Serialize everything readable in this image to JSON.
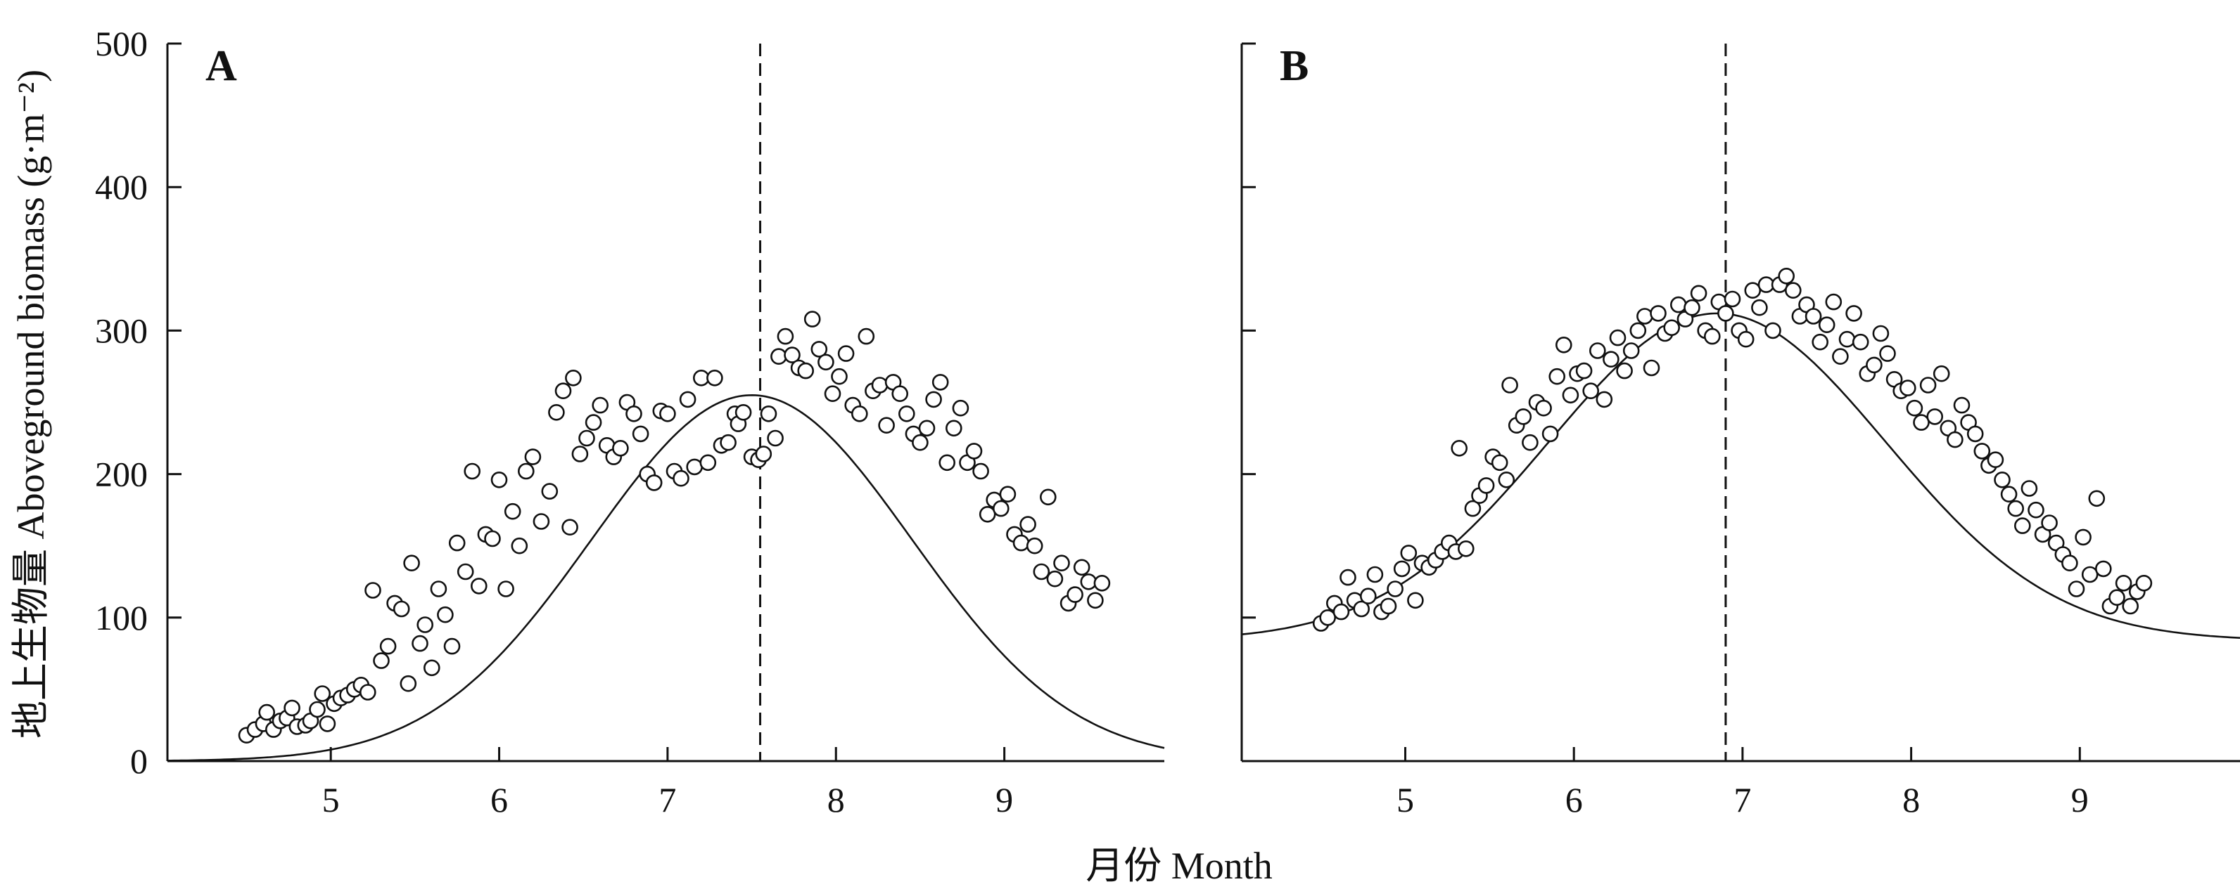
{
  "ylabel": "地上生物量 Aboveground biomass (g·m⁻²)",
  "xlabel": "月份 Month",
  "chart_data": [
    {
      "panel": "A",
      "type": "scatter",
      "xlim": [
        4.03,
        9.95
      ],
      "ylim": [
        0,
        500
      ],
      "xticks": [
        5,
        6,
        7,
        8,
        9
      ],
      "xtick_labels": [
        "5",
        "6",
        "7",
        "8",
        "9"
      ],
      "yticks": [
        0,
        100,
        200,
        300,
        400,
        500
      ],
      "ytick_labels": [
        "0",
        "100",
        "200",
        "300",
        "400",
        "500"
      ],
      "grid": false,
      "fit_curve": {
        "type": "gaussian",
        "peak_x": 7.5,
        "peak_y": 255,
        "sigma": 0.95,
        "baseline": 0
      },
      "peak_marker_x": 7.55,
      "points": [
        [
          4.5,
          18
        ],
        [
          4.55,
          22
        ],
        [
          4.6,
          26
        ],
        [
          4.62,
          34
        ],
        [
          4.66,
          22
        ],
        [
          4.7,
          28
        ],
        [
          4.74,
          30
        ],
        [
          4.77,
          37
        ],
        [
          4.8,
          24
        ],
        [
          4.85,
          25
        ],
        [
          4.88,
          28
        ],
        [
          4.92,
          36
        ],
        [
          4.95,
          47
        ],
        [
          4.98,
          26
        ],
        [
          5.02,
          40
        ],
        [
          5.06,
          44
        ],
        [
          5.1,
          46
        ],
        [
          5.14,
          50
        ],
        [
          5.18,
          53
        ],
        [
          5.22,
          48
        ],
        [
          5.25,
          119
        ],
        [
          5.3,
          70
        ],
        [
          5.34,
          80
        ],
        [
          5.38,
          110
        ],
        [
          5.42,
          106
        ],
        [
          5.46,
          54
        ],
        [
          5.48,
          138
        ],
        [
          5.53,
          82
        ],
        [
          5.56,
          95
        ],
        [
          5.6,
          65
        ],
        [
          5.64,
          120
        ],
        [
          5.68,
          102
        ],
        [
          5.72,
          80
        ],
        [
          5.75,
          152
        ],
        [
          5.8,
          132
        ],
        [
          5.84,
          202
        ],
        [
          5.88,
          122
        ],
        [
          5.92,
          158
        ],
        [
          5.96,
          155
        ],
        [
          6.0,
          196
        ],
        [
          6.04,
          120
        ],
        [
          6.08,
          174
        ],
        [
          6.12,
          150
        ],
        [
          6.16,
          202
        ],
        [
          6.2,
          212
        ],
        [
          6.25,
          167
        ],
        [
          6.3,
          188
        ],
        [
          6.34,
          243
        ],
        [
          6.38,
          258
        ],
        [
          6.42,
          163
        ],
        [
          6.44,
          267
        ],
        [
          6.48,
          214
        ],
        [
          6.52,
          225
        ],
        [
          6.56,
          236
        ],
        [
          6.6,
          248
        ],
        [
          6.64,
          220
        ],
        [
          6.68,
          212
        ],
        [
          6.72,
          218
        ],
        [
          6.76,
          250
        ],
        [
          6.8,
          242
        ],
        [
          6.84,
          228
        ],
        [
          6.88,
          200
        ],
        [
          6.92,
          194
        ],
        [
          6.96,
          244
        ],
        [
          7.0,
          242
        ],
        [
          7.04,
          202
        ],
        [
          7.08,
          197
        ],
        [
          7.12,
          252
        ],
        [
          7.16,
          205
        ],
        [
          7.2,
          267
        ],
        [
          7.24,
          208
        ],
        [
          7.28,
          267
        ],
        [
          7.32,
          220
        ],
        [
          7.36,
          222
        ],
        [
          7.4,
          242
        ],
        [
          7.42,
          235
        ],
        [
          7.45,
          243
        ],
        [
          7.5,
          212
        ],
        [
          7.54,
          210
        ],
        [
          7.57,
          214
        ],
        [
          7.6,
          242
        ],
        [
          7.64,
          225
        ],
        [
          7.66,
          282
        ],
        [
          7.7,
          296
        ],
        [
          7.74,
          283
        ],
        [
          7.78,
          274
        ],
        [
          7.82,
          272
        ],
        [
          7.86,
          308
        ],
        [
          7.9,
          287
        ],
        [
          7.94,
          278
        ],
        [
          7.98,
          256
        ],
        [
          8.02,
          268
        ],
        [
          8.06,
          284
        ],
        [
          8.1,
          248
        ],
        [
          8.14,
          242
        ],
        [
          8.18,
          296
        ],
        [
          8.22,
          258
        ],
        [
          8.26,
          262
        ],
        [
          8.3,
          234
        ],
        [
          8.34,
          264
        ],
        [
          8.38,
          256
        ],
        [
          8.42,
          242
        ],
        [
          8.46,
          228
        ],
        [
          8.5,
          222
        ],
        [
          8.54,
          232
        ],
        [
          8.58,
          252
        ],
        [
          8.62,
          264
        ],
        [
          8.66,
          208
        ],
        [
          8.7,
          232
        ],
        [
          8.74,
          246
        ],
        [
          8.78,
          208
        ],
        [
          8.82,
          216
        ],
        [
          8.86,
          202
        ],
        [
          8.9,
          172
        ],
        [
          8.94,
          182
        ],
        [
          8.98,
          176
        ],
        [
          9.02,
          186
        ],
        [
          9.06,
          158
        ],
        [
          9.1,
          152
        ],
        [
          9.14,
          165
        ],
        [
          9.18,
          150
        ],
        [
          9.22,
          132
        ],
        [
          9.26,
          184
        ],
        [
          9.3,
          127
        ],
        [
          9.34,
          138
        ],
        [
          9.38,
          110
        ],
        [
          9.42,
          116
        ],
        [
          9.46,
          135
        ],
        [
          9.5,
          125
        ],
        [
          9.54,
          112
        ],
        [
          9.58,
          124
        ]
      ]
    },
    {
      "panel": "B",
      "type": "scatter",
      "xlim": [
        4.03,
        9.95
      ],
      "ylim": [
        0,
        500
      ],
      "xticks": [
        5,
        6,
        7,
        8,
        9
      ],
      "xtick_labels": [
        "5",
        "6",
        "7",
        "8",
        "9"
      ],
      "yticks": [
        0,
        100,
        200,
        300,
        400,
        500
      ],
      "ytick_labels": [],
      "grid": false,
      "fit_curve": {
        "type": "gaussian",
        "peak_x": 6.85,
        "peak_y": 312,
        "sigma": 1.0,
        "baseline": 84
      },
      "peak_marker_x": 6.9,
      "points": [
        [
          4.5,
          96
        ],
        [
          4.54,
          100
        ],
        [
          4.58,
          110
        ],
        [
          4.62,
          104
        ],
        [
          4.66,
          128
        ],
        [
          4.7,
          112
        ],
        [
          4.74,
          106
        ],
        [
          4.78,
          115
        ],
        [
          4.82,
          130
        ],
        [
          4.86,
          104
        ],
        [
          4.9,
          108
        ],
        [
          4.94,
          120
        ],
        [
          4.98,
          134
        ],
        [
          5.02,
          145
        ],
        [
          5.06,
          112
        ],
        [
          5.1,
          138
        ],
        [
          5.14,
          135
        ],
        [
          5.18,
          140
        ],
        [
          5.22,
          146
        ],
        [
          5.26,
          152
        ],
        [
          5.3,
          146
        ],
        [
          5.32,
          218
        ],
        [
          5.36,
          148
        ],
        [
          5.4,
          176
        ],
        [
          5.44,
          185
        ],
        [
          5.48,
          192
        ],
        [
          5.52,
          212
        ],
        [
          5.56,
          208
        ],
        [
          5.6,
          196
        ],
        [
          5.62,
          262
        ],
        [
          5.66,
          234
        ],
        [
          5.7,
          240
        ],
        [
          5.74,
          222
        ],
        [
          5.78,
          250
        ],
        [
          5.82,
          246
        ],
        [
          5.86,
          228
        ],
        [
          5.9,
          268
        ],
        [
          5.94,
          290
        ],
        [
          5.98,
          255
        ],
        [
          6.02,
          270
        ],
        [
          6.06,
          272
        ],
        [
          6.1,
          258
        ],
        [
          6.14,
          286
        ],
        [
          6.18,
          252
        ],
        [
          6.22,
          280
        ],
        [
          6.26,
          295
        ],
        [
          6.3,
          272
        ],
        [
          6.34,
          286
        ],
        [
          6.38,
          300
        ],
        [
          6.42,
          310
        ],
        [
          6.46,
          274
        ],
        [
          6.5,
          312
        ],
        [
          6.54,
          298
        ],
        [
          6.58,
          302
        ],
        [
          6.62,
          318
        ],
        [
          6.66,
          308
        ],
        [
          6.7,
          316
        ],
        [
          6.74,
          326
        ],
        [
          6.78,
          300
        ],
        [
          6.82,
          296
        ],
        [
          6.86,
          320
        ],
        [
          6.9,
          312
        ],
        [
          6.94,
          322
        ],
        [
          6.98,
          300
        ],
        [
          7.02,
          294
        ],
        [
          7.06,
          328
        ],
        [
          7.1,
          316
        ],
        [
          7.14,
          332
        ],
        [
          7.18,
          300
        ],
        [
          7.22,
          332
        ],
        [
          7.26,
          338
        ],
        [
          7.3,
          328
        ],
        [
          7.34,
          310
        ],
        [
          7.38,
          318
        ],
        [
          7.42,
          310
        ],
        [
          7.46,
          292
        ],
        [
          7.5,
          304
        ],
        [
          7.54,
          320
        ],
        [
          7.58,
          282
        ],
        [
          7.62,
          294
        ],
        [
          7.66,
          312
        ],
        [
          7.7,
          292
        ],
        [
          7.74,
          270
        ],
        [
          7.78,
          276
        ],
        [
          7.82,
          298
        ],
        [
          7.86,
          284
        ],
        [
          7.9,
          266
        ],
        [
          7.94,
          258
        ],
        [
          7.98,
          260
        ],
        [
          8.02,
          246
        ],
        [
          8.06,
          236
        ],
        [
          8.1,
          262
        ],
        [
          8.14,
          240
        ],
        [
          8.18,
          270
        ],
        [
          8.22,
          232
        ],
        [
          8.26,
          224
        ],
        [
          8.3,
          248
        ],
        [
          8.34,
          236
        ],
        [
          8.38,
          228
        ],
        [
          8.42,
          216
        ],
        [
          8.46,
          206
        ],
        [
          8.5,
          210
        ],
        [
          8.54,
          196
        ],
        [
          8.58,
          186
        ],
        [
          8.62,
          176
        ],
        [
          8.66,
          164
        ],
        [
          8.7,
          190
        ],
        [
          8.74,
          175
        ],
        [
          8.78,
          158
        ],
        [
          8.82,
          166
        ],
        [
          8.86,
          152
        ],
        [
          8.9,
          144
        ],
        [
          8.94,
          138
        ],
        [
          8.98,
          120
        ],
        [
          9.02,
          156
        ],
        [
          9.06,
          130
        ],
        [
          9.1,
          183
        ],
        [
          9.14,
          134
        ],
        [
          9.18,
          108
        ],
        [
          9.22,
          114
        ],
        [
          9.26,
          124
        ],
        [
          9.3,
          108
        ],
        [
          9.34,
          118
        ],
        [
          9.38,
          124
        ]
      ]
    }
  ]
}
